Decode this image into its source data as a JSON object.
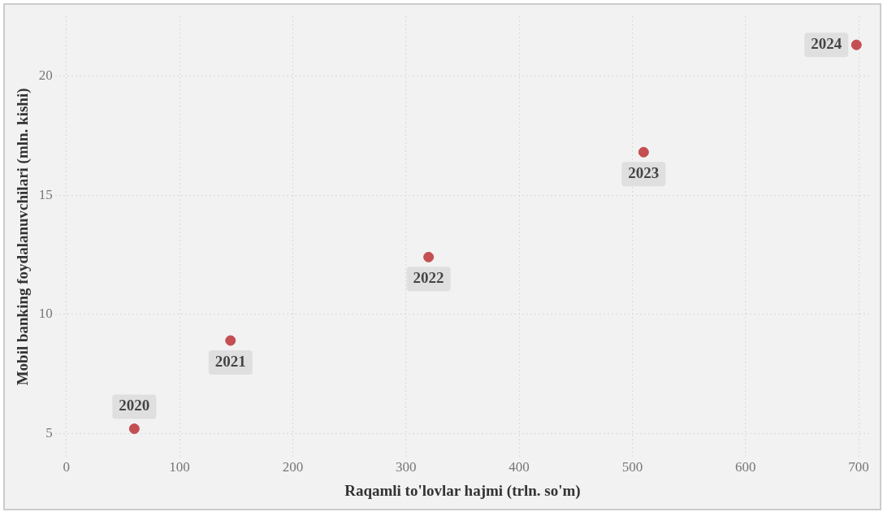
{
  "chart_data": {
    "type": "scatter",
    "xlabel": "Raqamli to'lovlar hajmi (trln. so'm)",
    "ylabel": "Mobil banking foydalanuvchilari (mln. kishi)",
    "x": [
      60,
      145,
      320,
      510,
      698
    ],
    "series": [
      {
        "color": "#c44e52",
        "values": [
          5.2,
          8.9,
          12.4,
          16.8,
          21.3
        ]
      }
    ],
    "annotations": [
      {
        "text": "2020",
        "x": 60,
        "y": 5.2
      },
      {
        "text": "2021",
        "x": 145,
        "y": 8.9
      },
      {
        "text": "2022",
        "x": 320,
        "y": 12.4
      },
      {
        "text": "2023",
        "x": 510,
        "y": 16.8
      },
      {
        "text": "2024",
        "x": 698,
        "y": 21.3
      }
    ],
    "xlim": [
      -10,
      710
    ],
    "ylim": [
      4,
      22.5
    ],
    "xticks": [
      0,
      100,
      200,
      300,
      400,
      500,
      600,
      700
    ],
    "yticks": [
      5,
      10,
      15,
      20
    ],
    "grid": true,
    "legend": false,
    "marker": "circle"
  }
}
